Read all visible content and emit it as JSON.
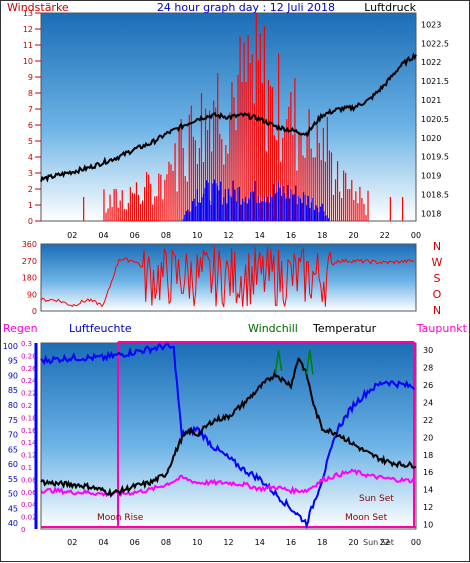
{
  "title": "24 hour graph day : 12 Juli 2018",
  "colors": {
    "panel_top": "#1a6fb5",
    "panel_bottom": "#ffffff",
    "wind_speed": "#ff0000",
    "wind_gust": "#0000ff",
    "pressure": "#000000",
    "direction": "#ff0000",
    "humidity": "#0000ff",
    "temperature": "#000000",
    "dewpoint": "#ff00ff",
    "windchill": "#008000",
    "rain": "#ff00aa",
    "red_text": "#cc0000",
    "blue_text": "#0000cc",
    "magenta_text": "#ff00cc",
    "green_text": "#006600"
  },
  "chart_data": [
    {
      "type": "bar",
      "left_label": "Windstärke",
      "right_label": "Luftdruck",
      "x_ticks": [
        "02",
        "04",
        "06",
        "08",
        "10",
        "12",
        "14",
        "16",
        "18",
        "20",
        "22",
        "00"
      ],
      "y_left_ticks": [
        "0",
        "1",
        "2",
        "3",
        "4",
        "5",
        "6",
        "7",
        "8",
        "9",
        "10",
        "11",
        "12",
        "13"
      ],
      "y_right_ticks": [
        "1018",
        "1018.5",
        "1019",
        "1019.5",
        "1020",
        "1020.5",
        "1021",
        "1021.5",
        "1022",
        "1022.5",
        "1023"
      ],
      "ylim_left": [
        0,
        13
      ],
      "ylim_right": [
        1017.8,
        1023.3
      ],
      "pressure_keypoints": {
        "hours": [
          0,
          1,
          2,
          3,
          4,
          5,
          6,
          7,
          8,
          9,
          10,
          11,
          12,
          13,
          14,
          15,
          16,
          17,
          18,
          19,
          20,
          21,
          22,
          23,
          24
        ],
        "values": [
          1018.9,
          1019.0,
          1019.1,
          1019.2,
          1019.35,
          1019.5,
          1019.7,
          1019.85,
          1020.1,
          1020.3,
          1020.5,
          1020.6,
          1020.55,
          1020.6,
          1020.5,
          1020.3,
          1020.2,
          1020.1,
          1020.6,
          1020.75,
          1020.8,
          1021.0,
          1021.4,
          1021.9,
          1022.2
        ]
      },
      "wind_speed_keypoints": {
        "hours": [
          0,
          4,
          6,
          7,
          8,
          9,
          10,
          11,
          12,
          13,
          14,
          15,
          16,
          17,
          18,
          19,
          20,
          21,
          24
        ],
        "values": [
          0,
          0,
          1,
          1,
          2,
          5,
          7,
          8,
          8,
          9,
          10,
          8,
          7,
          6,
          5,
          2,
          1,
          0,
          0
        ]
      },
      "wind_gust_keypoints": {
        "hours": [
          0,
          9,
          10,
          12,
          14,
          16,
          18,
          18.5,
          24
        ],
        "values": [
          0,
          0,
          2,
          2,
          2,
          2,
          1,
          0,
          0
        ]
      }
    },
    {
      "type": "line",
      "y_left_ticks": [
        "0",
        "90",
        "180",
        "270",
        "360"
      ],
      "right_labels": [
        "N",
        "W",
        "S",
        "O",
        "N"
      ],
      "ylim": [
        0,
        360
      ],
      "direction_keypoints": {
        "hours": [
          0,
          1,
          2,
          3,
          4,
          5,
          6,
          7,
          8,
          9,
          10,
          12,
          14,
          16,
          18,
          19,
          20,
          22,
          24
        ],
        "values": [
          60,
          60,
          30,
          60,
          30,
          280,
          270,
          200,
          180,
          260,
          180,
          200,
          180,
          200,
          220,
          270,
          270,
          260,
          270
        ]
      }
    },
    {
      "type": "line",
      "labels": {
        "rain": "Regen",
        "humidity": "Luftfeuchte",
        "windchill": "Windchill",
        "temperature": "Temperatur",
        "dewpoint": "Taupunkt"
      },
      "x_ticks": [
        "02",
        "04",
        "06",
        "08",
        "10",
        "12",
        "14",
        "16",
        "18",
        "20",
        "22",
        "00"
      ],
      "y_humidity_ticks": [
        "40",
        "45",
        "50",
        "55",
        "60",
        "65",
        "70",
        "75",
        "80",
        "85",
        "90",
        "95",
        "100"
      ],
      "y_rain_ticks": [
        "0",
        "0.02",
        "0.04",
        "0.06",
        "0.08",
        "0.1",
        "0.12",
        "0.14",
        "0.16",
        "0.18",
        "0.2",
        "0.22",
        "0.24",
        "0.26",
        "0.28",
        "0.3"
      ],
      "y_temp_ticks": [
        "10",
        "12",
        "14",
        "16",
        "18",
        "20",
        "22",
        "24",
        "26",
        "28",
        "30"
      ],
      "humidity_lim": [
        38,
        101
      ],
      "temp_lim": [
        9.5,
        30.8
      ],
      "annotations": {
        "moon_rise": "Moon Rise",
        "moon_set": "Moon Set",
        "sun_set": "Sun Set",
        "sun_set_short": "Sun Set"
      },
      "humidity_keypoints": {
        "hours": [
          0,
          2,
          4,
          5,
          6,
          7,
          8,
          8.5,
          9,
          10,
          11,
          12,
          13,
          14,
          15,
          16,
          17,
          18,
          19,
          20,
          21,
          22,
          23,
          24
        ],
        "values": [
          95,
          96,
          96,
          97,
          98,
          99,
          100,
          99,
          70,
          72,
          66,
          62,
          58,
          55,
          50,
          45,
          40,
          55,
          72,
          80,
          85,
          88,
          87,
          86
        ]
      },
      "temperature_keypoints": {
        "hours": [
          0,
          1,
          2,
          3,
          4,
          4.5,
          5,
          6,
          7,
          8,
          9,
          9.5,
          10,
          11,
          12,
          13,
          14,
          15,
          15.5,
          16,
          16.5,
          17,
          17.5,
          18,
          19,
          20,
          21,
          22,
          23,
          24
        ],
        "values": [
          14.9,
          14.7,
          14.6,
          14.4,
          13.9,
          13.6,
          13.8,
          14.4,
          14.8,
          15.8,
          19.9,
          20.7,
          20.3,
          21.9,
          22.4,
          23.9,
          25.7,
          27.3,
          26.5,
          26.0,
          29.2,
          27.2,
          23.4,
          21.0,
          20.4,
          19.2,
          18.1,
          17.3,
          16.9,
          16.8
        ]
      },
      "dewpoint_keypoints": {
        "hours": [
          0,
          1,
          2,
          3,
          4,
          5,
          6,
          7,
          8,
          9,
          10,
          11,
          12,
          13,
          14,
          15,
          16,
          17,
          18,
          19,
          20,
          21,
          22,
          23,
          24
        ],
        "values": [
          13.9,
          13.9,
          13.7,
          13.7,
          13.5,
          13.5,
          13.7,
          14.0,
          14.6,
          15.4,
          14.8,
          14.8,
          14.8,
          14.6,
          14.1,
          14.3,
          13.9,
          13.9,
          15.1,
          15.7,
          16.1,
          15.6,
          15.3,
          15.1,
          15.0
        ]
      },
      "windchill_keypoints": {
        "hours": [
          15.0,
          15.2,
          15.4,
          17.0,
          17.2,
          17.4
        ],
        "values": [
          27.3,
          30.0,
          27.6,
          27.2,
          30.0,
          27.2
        ]
      }
    }
  ]
}
